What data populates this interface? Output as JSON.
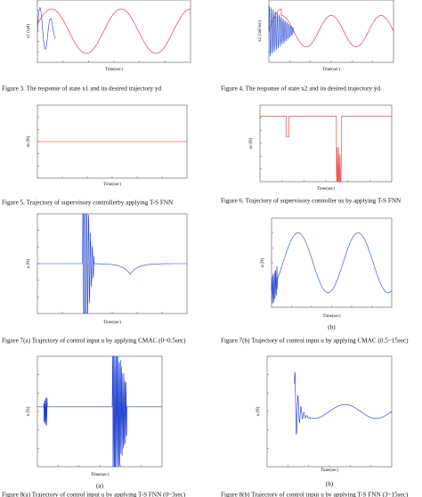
{
  "figures": [
    {
      "y_label": "x1 (rad)",
      "x_label": "Time(sec)",
      "caption": "Figure 3. The response of state  x1  and its desired trajectory  yd"
    },
    {
      "y_label": "x2 (rad/sec)",
      "x_label": "Time(sec)",
      "caption": "Figure 4. The response of state  x2  and its desired trajectory  ẏd"
    },
    {
      "y_label": "us (N)",
      "x_label": "Time(sec)",
      "caption": "Figure 5. Trajectory of supervisory  controllerby applying T-S FNN"
    },
    {
      "y_label": "us (N)",
      "x_label": "Time(sec)",
      "caption": "Figure 6. Trajectory of supervisory  controller us by applying T-S FNN"
    },
    {
      "y_label": "u (N)",
      "x_label": "Time(sec)",
      "caption": "Figure 7(a) Trajectory of control input  u  by applying CMAC (0~0.5sec)"
    },
    {
      "y_label": "u (N)",
      "x_label": "Time(sec)",
      "sub": "(b)",
      "caption": "Figure 7(b) Trajectory of control input  u  by applying CMAC (0.5~15sec)"
    },
    {
      "y_label": "u (N)",
      "x_label": "Time(sec)",
      "sub": "(a)",
      "caption": "Figure 8(a) Trajectory of control input  u  by applying T-S FNN (0~3sec)"
    },
    {
      "y_label": "u (N)",
      "x_label": "Time(sec)",
      "sub": "(b)",
      "caption": "Figure 8(b) Trajectory of control input  u  by applying T-S FNN (3~15sec)"
    }
  ]
}
